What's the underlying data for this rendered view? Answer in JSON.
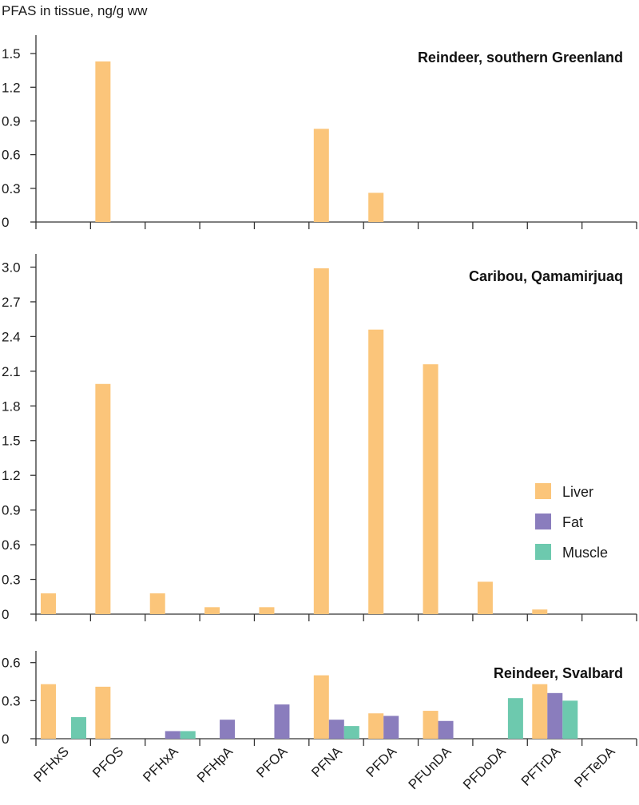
{
  "ylabel": "PFAS in tissue, ng/g ww",
  "colors": {
    "Liver": "#fbc57a",
    "Fat": "#8a7dbd",
    "Muscle": "#6dc9ae"
  },
  "legend": {
    "items": [
      {
        "name": "Liver",
        "color": "#fbc57a"
      },
      {
        "name": "Fat",
        "color": "#8a7dbd"
      },
      {
        "name": "Muscle",
        "color": "#6dc9ae"
      }
    ]
  },
  "chart_data": [
    {
      "type": "bar",
      "title": "Reindeer, southern Greenland",
      "categories": [
        "PFHxS",
        "PFOS",
        "PFHxA",
        "PFHpA",
        "PFOA",
        "PFNA",
        "PFDA",
        "PFUnDA",
        "PFDoDA",
        "PFTrDA",
        "PFTeDA"
      ],
      "ylim": [
        0,
        1.65
      ],
      "yticks": [
        "0",
        "0.3",
        "0.6",
        "0.9",
        "1.2",
        "1.5"
      ],
      "series": [
        {
          "name": "Liver",
          "values": [
            0,
            1.43,
            0,
            0,
            0,
            0.83,
            0.26,
            0,
            0,
            0,
            0
          ]
        },
        {
          "name": "Fat",
          "values": [
            0,
            0,
            0,
            0,
            0,
            0,
            0,
            0,
            0,
            0,
            0
          ]
        },
        {
          "name": "Muscle",
          "values": [
            0,
            0,
            0,
            0,
            0,
            0,
            0,
            0,
            0,
            0,
            0
          ]
        }
      ]
    },
    {
      "type": "bar",
      "title": "Caribou, Qamamirjuaq",
      "categories": [
        "PFHxS",
        "PFOS",
        "PFHxA",
        "PFHpA",
        "PFOA",
        "PFNA",
        "PFDA",
        "PFUnDA",
        "PFDoDA",
        "PFTrDA",
        "PFTeDA"
      ],
      "ylim": [
        0,
        3.1
      ],
      "yticks": [
        "0",
        "0.3",
        "0.6",
        "0.9",
        "1.2",
        "1.5",
        "1.8",
        "2.1",
        "2.4",
        "2.7",
        "3.0"
      ],
      "series": [
        {
          "name": "Liver",
          "values": [
            0.18,
            1.99,
            0.18,
            0.06,
            0.06,
            2.99,
            2.46,
            2.16,
            0.28,
            0.04,
            0
          ]
        },
        {
          "name": "Fat",
          "values": [
            0,
            0,
            0,
            0,
            0,
            0,
            0,
            0,
            0,
            0,
            0
          ]
        },
        {
          "name": "Muscle",
          "values": [
            0,
            0,
            0,
            0,
            0,
            0,
            0,
            0,
            0,
            0,
            0
          ]
        }
      ]
    },
    {
      "type": "bar",
      "title": "Reindeer, Svalbard",
      "categories": [
        "PFHxS",
        "PFOS",
        "PFHxA",
        "PFHpA",
        "PFOA",
        "PFNA",
        "PFDA",
        "PFUnDA",
        "PFDoDA",
        "PFTrDA",
        "PFTeDA"
      ],
      "ylim": [
        0,
        0.68
      ],
      "yticks": [
        "0",
        "0.3",
        "0.6"
      ],
      "series": [
        {
          "name": "Liver",
          "values": [
            0.43,
            0.41,
            0,
            0,
            0,
            0.5,
            0.2,
            0.22,
            0,
            0.43,
            0
          ]
        },
        {
          "name": "Fat",
          "values": [
            0,
            0,
            0.06,
            0.15,
            0.27,
            0.15,
            0.18,
            0.14,
            0,
            0.36,
            0
          ]
        },
        {
          "name": "Muscle",
          "values": [
            0.17,
            0,
            0.06,
            0,
            0,
            0.1,
            0,
            0,
            0.32,
            0.3,
            0
          ]
        }
      ]
    }
  ]
}
